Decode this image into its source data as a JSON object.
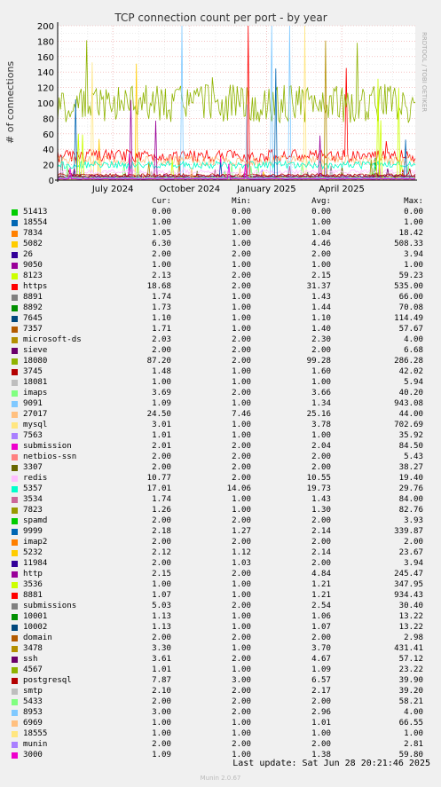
{
  "chart_data": {
    "type": "line",
    "title": "TCP connection count per port - by year",
    "ylabel": "# of connections",
    "side_label": "RRDTOOL / TOBI OETIKER",
    "ylim": [
      0,
      200
    ],
    "yticks": [
      0,
      20,
      40,
      60,
      80,
      100,
      120,
      140,
      160,
      180,
      200
    ],
    "x_range": [
      "2024-04-26",
      "2025-06-28"
    ],
    "xticks": [
      {
        "label": "July 2024",
        "date": "2024-07-01"
      },
      {
        "label": "October 2024",
        "date": "2024-10-01"
      },
      {
        "label": "January 2025",
        "date": "2025-01-01"
      },
      {
        "label": "April 2025",
        "date": "2025-04-01"
      }
    ],
    "grid": true,
    "columns": {
      "cur": "Cur:",
      "min": "Min:",
      "avg": "Avg:",
      "max": "Max:"
    },
    "series": [
      {
        "name": "51413",
        "color": "#00cc00",
        "cur": "0.00",
        "min": "0.00",
        "avg": "0.00",
        "max": "0.00"
      },
      {
        "name": "18554",
        "color": "#0066b3",
        "cur": "1.00",
        "min": "1.00",
        "avg": "1.00",
        "max": "1.00"
      },
      {
        "name": "7834",
        "color": "#ff8000",
        "cur": "1.05",
        "min": "1.00",
        "avg": "1.04",
        "max": "18.42"
      },
      {
        "name": "5082",
        "color": "#ffcc00",
        "cur": "6.30",
        "min": "1.00",
        "avg": "4.46",
        "max": "508.33"
      },
      {
        "name": "26",
        "color": "#330099",
        "cur": "2.00",
        "min": "2.00",
        "avg": "2.00",
        "max": "3.94"
      },
      {
        "name": "9050",
        "color": "#990099",
        "cur": "1.00",
        "min": "1.00",
        "avg": "1.00",
        "max": "1.00"
      },
      {
        "name": "8123",
        "color": "#ccff00",
        "cur": "2.13",
        "min": "2.00",
        "avg": "2.15",
        "max": "59.23"
      },
      {
        "name": "https",
        "color": "#ff0000",
        "cur": "18.68",
        "min": "2.00",
        "avg": "31.37",
        "max": "535.00"
      },
      {
        "name": "8891",
        "color": "#808080",
        "cur": "1.74",
        "min": "1.00",
        "avg": "1.43",
        "max": "66.00"
      },
      {
        "name": "8892",
        "color": "#008f00",
        "cur": "1.73",
        "min": "1.00",
        "avg": "1.44",
        "max": "70.08"
      },
      {
        "name": "7645",
        "color": "#00487d",
        "cur": "1.10",
        "min": "1.00",
        "avg": "1.10",
        "max": "114.49"
      },
      {
        "name": "7357",
        "color": "#b35a00",
        "cur": "1.71",
        "min": "1.00",
        "avg": "1.40",
        "max": "57.67"
      },
      {
        "name": "microsoft-ds",
        "color": "#b38f00",
        "cur": "2.03",
        "min": "2.00",
        "avg": "2.30",
        "max": "4.00"
      },
      {
        "name": "sieve",
        "color": "#6b006b",
        "cur": "2.00",
        "min": "2.00",
        "avg": "2.00",
        "max": "6.68"
      },
      {
        "name": "18080",
        "color": "#8fb300",
        "cur": "87.20",
        "min": "2.00",
        "avg": "99.28",
        "max": "286.28"
      },
      {
        "name": "3745",
        "color": "#b30000",
        "cur": "1.48",
        "min": "1.00",
        "avg": "1.60",
        "max": "42.02"
      },
      {
        "name": "18081",
        "color": "#bebebe",
        "cur": "1.00",
        "min": "1.00",
        "avg": "1.00",
        "max": "5.94"
      },
      {
        "name": "imaps",
        "color": "#80ff80",
        "cur": "3.69",
        "min": "2.00",
        "avg": "3.66",
        "max": "40.20"
      },
      {
        "name": "9091",
        "color": "#80c9ff",
        "cur": "1.09",
        "min": "1.00",
        "avg": "1.34",
        "max": "943.08"
      },
      {
        "name": "27017",
        "color": "#ffc080",
        "cur": "24.50",
        "min": "7.46",
        "avg": "25.16",
        "max": "44.00"
      },
      {
        "name": "mysql",
        "color": "#ffe680",
        "cur": "3.01",
        "min": "1.00",
        "avg": "3.78",
        "max": "702.69"
      },
      {
        "name": "7563",
        "color": "#aa80ff",
        "cur": "1.01",
        "min": "1.00",
        "avg": "1.00",
        "max": "35.92"
      },
      {
        "name": "submission",
        "color": "#ee00cc",
        "cur": "2.01",
        "min": "2.00",
        "avg": "2.04",
        "max": "84.50"
      },
      {
        "name": "netbios-ssn",
        "color": "#ff8080",
        "cur": "2.00",
        "min": "2.00",
        "avg": "2.00",
        "max": "5.43"
      },
      {
        "name": "3307",
        "color": "#666600",
        "cur": "2.00",
        "min": "2.00",
        "avg": "2.00",
        "max": "38.27"
      },
      {
        "name": "redis",
        "color": "#ffbfff",
        "cur": "10.77",
        "min": "2.00",
        "avg": "10.55",
        "max": "19.40"
      },
      {
        "name": "5357",
        "color": "#00ffcc",
        "cur": "17.01",
        "min": "14.06",
        "avg": "19.73",
        "max": "29.76"
      },
      {
        "name": "3534",
        "color": "#cc6699",
        "cur": "1.74",
        "min": "1.00",
        "avg": "1.43",
        "max": "84.00"
      },
      {
        "name": "7823",
        "color": "#999900",
        "cur": "1.26",
        "min": "1.00",
        "avg": "1.30",
        "max": "82.76"
      },
      {
        "name": "spamd",
        "color": "#00cc00",
        "cur": "2.00",
        "min": "2.00",
        "avg": "2.00",
        "max": "3.93"
      },
      {
        "name": "9999",
        "color": "#0066b3",
        "cur": "2.18",
        "min": "1.27",
        "avg": "2.14",
        "max": "339.87"
      },
      {
        "name": "imap2",
        "color": "#ff8000",
        "cur": "2.00",
        "min": "2.00",
        "avg": "2.00",
        "max": "2.00"
      },
      {
        "name": "5232",
        "color": "#ffcc00",
        "cur": "2.12",
        "min": "1.12",
        "avg": "2.14",
        "max": "23.67"
      },
      {
        "name": "11984",
        "color": "#330099",
        "cur": "2.00",
        "min": "1.03",
        "avg": "2.00",
        "max": "3.94"
      },
      {
        "name": "http",
        "color": "#990099",
        "cur": "2.15",
        "min": "2.00",
        "avg": "4.84",
        "max": "245.47"
      },
      {
        "name": "3536",
        "color": "#ccff00",
        "cur": "1.00",
        "min": "1.00",
        "avg": "1.21",
        "max": "347.95"
      },
      {
        "name": "8881",
        "color": "#ff0000",
        "cur": "1.07",
        "min": "1.00",
        "avg": "1.21",
        "max": "934.43"
      },
      {
        "name": "submissions",
        "color": "#808080",
        "cur": "5.03",
        "min": "2.00",
        "avg": "2.54",
        "max": "30.40"
      },
      {
        "name": "10001",
        "color": "#008f00",
        "cur": "1.13",
        "min": "1.00",
        "avg": "1.06",
        "max": "13.22"
      },
      {
        "name": "10002",
        "color": "#00487d",
        "cur": "1.13",
        "min": "1.00",
        "avg": "1.07",
        "max": "13.22"
      },
      {
        "name": "domain",
        "color": "#b35a00",
        "cur": "2.00",
        "min": "2.00",
        "avg": "2.00",
        "max": "2.98"
      },
      {
        "name": "3478",
        "color": "#b38f00",
        "cur": "3.30",
        "min": "1.00",
        "avg": "3.70",
        "max": "431.41"
      },
      {
        "name": "ssh",
        "color": "#6b006b",
        "cur": "3.61",
        "min": "2.00",
        "avg": "4.67",
        "max": "57.12"
      },
      {
        "name": "4567",
        "color": "#8fb300",
        "cur": "1.01",
        "min": "1.00",
        "avg": "1.09",
        "max": "23.22"
      },
      {
        "name": "postgresql",
        "color": "#b30000",
        "cur": "7.87",
        "min": "3.00",
        "avg": "6.57",
        "max": "39.90"
      },
      {
        "name": "smtp",
        "color": "#bebebe",
        "cur": "2.10",
        "min": "2.00",
        "avg": "2.17",
        "max": "39.20"
      },
      {
        "name": "5433",
        "color": "#80ff80",
        "cur": "2.00",
        "min": "2.00",
        "avg": "2.00",
        "max": "58.21"
      },
      {
        "name": "8953",
        "color": "#80c9ff",
        "cur": "3.00",
        "min": "2.00",
        "avg": "2.96",
        "max": "4.00"
      },
      {
        "name": "6969",
        "color": "#ffc080",
        "cur": "1.00",
        "min": "1.00",
        "avg": "1.01",
        "max": "66.55"
      },
      {
        "name": "18555",
        "color": "#ffe680",
        "cur": "1.00",
        "min": "1.00",
        "avg": "1.00",
        "max": "1.00"
      },
      {
        "name": "munin",
        "color": "#aa80ff",
        "cur": "2.00",
        "min": "2.00",
        "avg": "2.00",
        "max": "2.81"
      },
      {
        "name": "3000",
        "color": "#ee00cc",
        "cur": "1.09",
        "min": "1.00",
        "avg": "1.38",
        "max": "59.80"
      }
    ]
  },
  "footer": {
    "last_update": "Last update: Sat Jun 28 20:21:46 2025",
    "munin": "Munin 2.0.67"
  }
}
